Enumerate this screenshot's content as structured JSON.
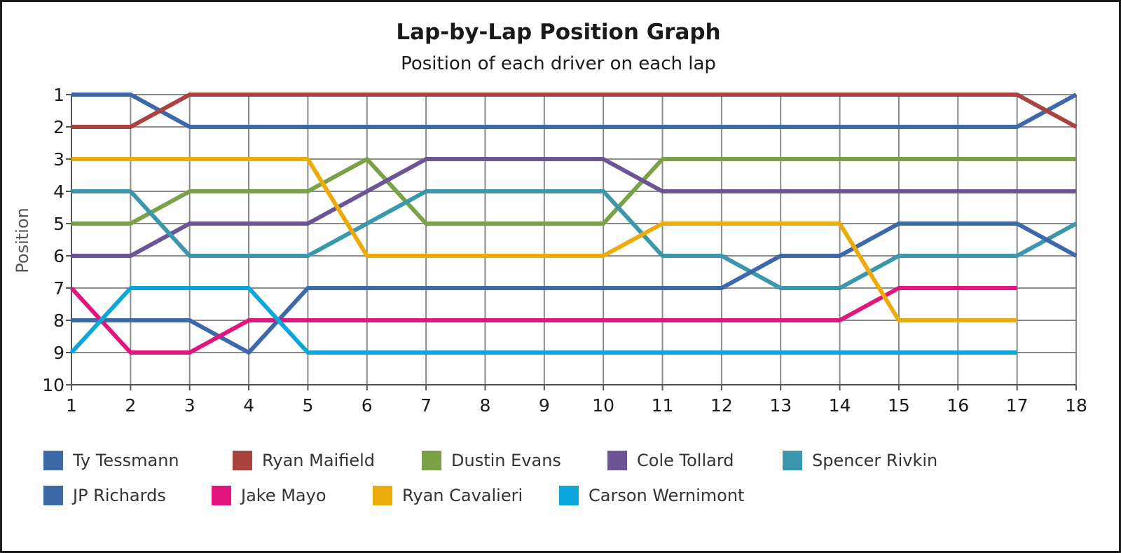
{
  "chart_data": {
    "type": "line",
    "title": "Lap-by-Lap Position Graph",
    "subtitle": "Position of each driver on each lap",
    "xlabel": "",
    "ylabel": "Position",
    "x": [
      1,
      2,
      3,
      4,
      5,
      6,
      7,
      8,
      9,
      10,
      11,
      12,
      13,
      14,
      15,
      16,
      17,
      18
    ],
    "xlim": [
      1,
      18
    ],
    "ylim": [
      1,
      10
    ],
    "y_inverted": true,
    "y_ticks": [
      1,
      2,
      3,
      4,
      5,
      6,
      7,
      8,
      9,
      10
    ],
    "grid": true,
    "legend_position": "bottom",
    "series": [
      {
        "name": "Ty Tessmann",
        "color": "#3c69a9",
        "values": [
          1,
          1,
          2,
          2,
          2,
          2,
          2,
          2,
          2,
          2,
          2,
          2,
          2,
          2,
          2,
          2,
          2,
          1
        ]
      },
      {
        "name": "Ryan Maifield",
        "color": "#a8433e",
        "values": [
          2,
          2,
          1,
          1,
          1,
          1,
          1,
          1,
          1,
          1,
          1,
          1,
          1,
          1,
          1,
          1,
          1,
          2
        ]
      },
      {
        "name": "Dustin Evans",
        "color": "#7aa145",
        "values": [
          5,
          5,
          4,
          4,
          4,
          3,
          5,
          5,
          5,
          5,
          3,
          3,
          3,
          3,
          3,
          3,
          3,
          3
        ]
      },
      {
        "name": "Cole Tollard",
        "color": "#6c5596",
        "values": [
          6,
          6,
          5,
          5,
          5,
          4,
          3,
          3,
          3,
          3,
          4,
          4,
          4,
          4,
          4,
          4,
          4,
          4
        ]
      },
      {
        "name": "Spencer Rivkin",
        "color": "#3c97ad",
        "values": [
          4,
          4,
          6,
          6,
          6,
          5,
          4,
          4,
          4,
          4,
          6,
          6,
          7,
          7,
          6,
          6,
          6,
          5
        ]
      },
      {
        "name": "JP Richards",
        "color": "#3c69a9",
        "values": [
          8,
          8,
          8,
          9,
          7,
          7,
          7,
          7,
          7,
          7,
          7,
          7,
          6,
          6,
          5,
          5,
          5,
          6
        ]
      },
      {
        "name": "Jake Mayo",
        "color": "#e0157d",
        "values": [
          7,
          9,
          9,
          8,
          8,
          8,
          8,
          8,
          8,
          8,
          8,
          8,
          8,
          8,
          7,
          7,
          7,
          null
        ]
      },
      {
        "name": "Ryan Cavalieri",
        "color": "#ebac0b",
        "values": [
          3,
          3,
          3,
          3,
          3,
          6,
          6,
          6,
          6,
          6,
          5,
          5,
          5,
          5,
          8,
          8,
          8,
          null
        ]
      },
      {
        "name": "Carson Wernimont",
        "color": "#0ba6db",
        "values": [
          9,
          7,
          7,
          7,
          9,
          9,
          9,
          9,
          9,
          9,
          9,
          9,
          9,
          9,
          9,
          9,
          9,
          null
        ]
      }
    ]
  },
  "legend": {
    "rows": [
      [
        0,
        1,
        2,
        3,
        4
      ],
      [
        5,
        6,
        7,
        8
      ]
    ]
  },
  "colors": {
    "grid": "#8a8a8a",
    "axis": "#555555",
    "text": "#1a1a1a"
  }
}
